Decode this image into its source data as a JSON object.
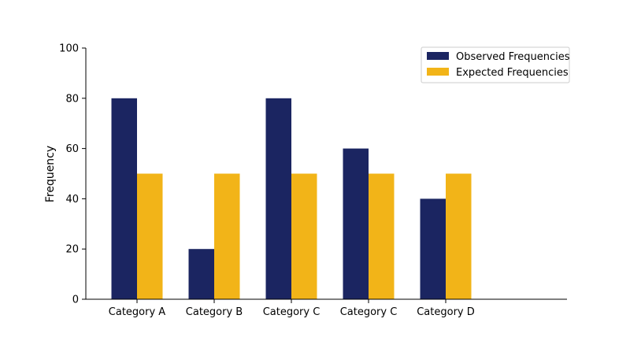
{
  "chart_data": {
    "type": "bar",
    "title": "",
    "xlabel": "",
    "ylabel": "Frequency",
    "categories": [
      "Category A",
      "Category B",
      "Category C",
      "Category C",
      "Category D"
    ],
    "series": [
      {
        "name": "Observed Frequencies",
        "color": "#1b2561",
        "values": [
          80,
          20,
          80,
          60,
          40
        ]
      },
      {
        "name": "Expected Frequencies",
        "color": "#f2b418",
        "values": [
          50,
          50,
          50,
          50,
          50
        ]
      }
    ],
    "ylim": [
      0,
      100
    ],
    "yticks": [
      0,
      20,
      40,
      60,
      80,
      100
    ],
    "grid": false,
    "legend_position": "top-right"
  }
}
